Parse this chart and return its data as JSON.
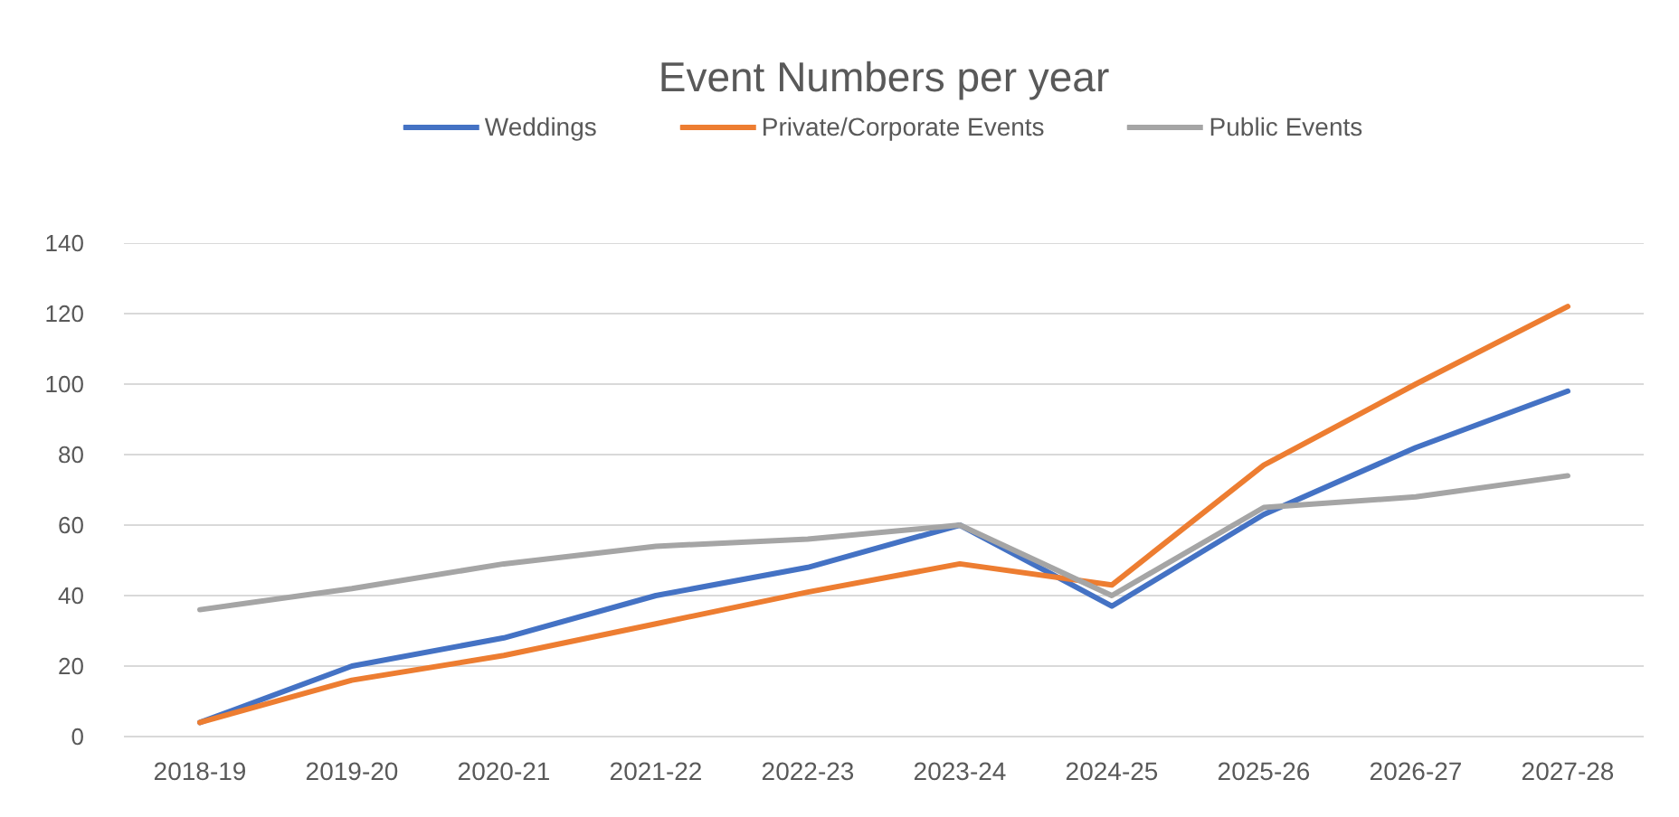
{
  "chart_data": {
    "type": "line",
    "title": "Event Numbers per year",
    "categories": [
      "2018-19",
      "2019-20",
      "2020-21",
      "2021-22",
      "2022-23",
      "2023-24",
      "2024-25",
      "2025-26",
      "2026-27",
      "2027-28"
    ],
    "series": [
      {
        "name": "Weddings",
        "color": "#4472c4",
        "values": [
          4,
          20,
          28,
          40,
          48,
          60,
          37,
          63,
          82,
          98
        ]
      },
      {
        "name": "Private/Corporate Events",
        "color": "#ed7d31",
        "values": [
          4,
          16,
          23,
          32,
          41,
          49,
          43,
          77,
          100,
          122
        ]
      },
      {
        "name": "Public Events",
        "color": "#a5a5a5",
        "values": [
          36,
          42,
          49,
          54,
          56,
          60,
          40,
          65,
          68,
          74
        ]
      }
    ],
    "ylim": [
      0,
      140
    ],
    "yticks": [
      0,
      20,
      40,
      60,
      80,
      100,
      120,
      140
    ],
    "grid": "y",
    "legend": "top",
    "line_style": "solid"
  }
}
